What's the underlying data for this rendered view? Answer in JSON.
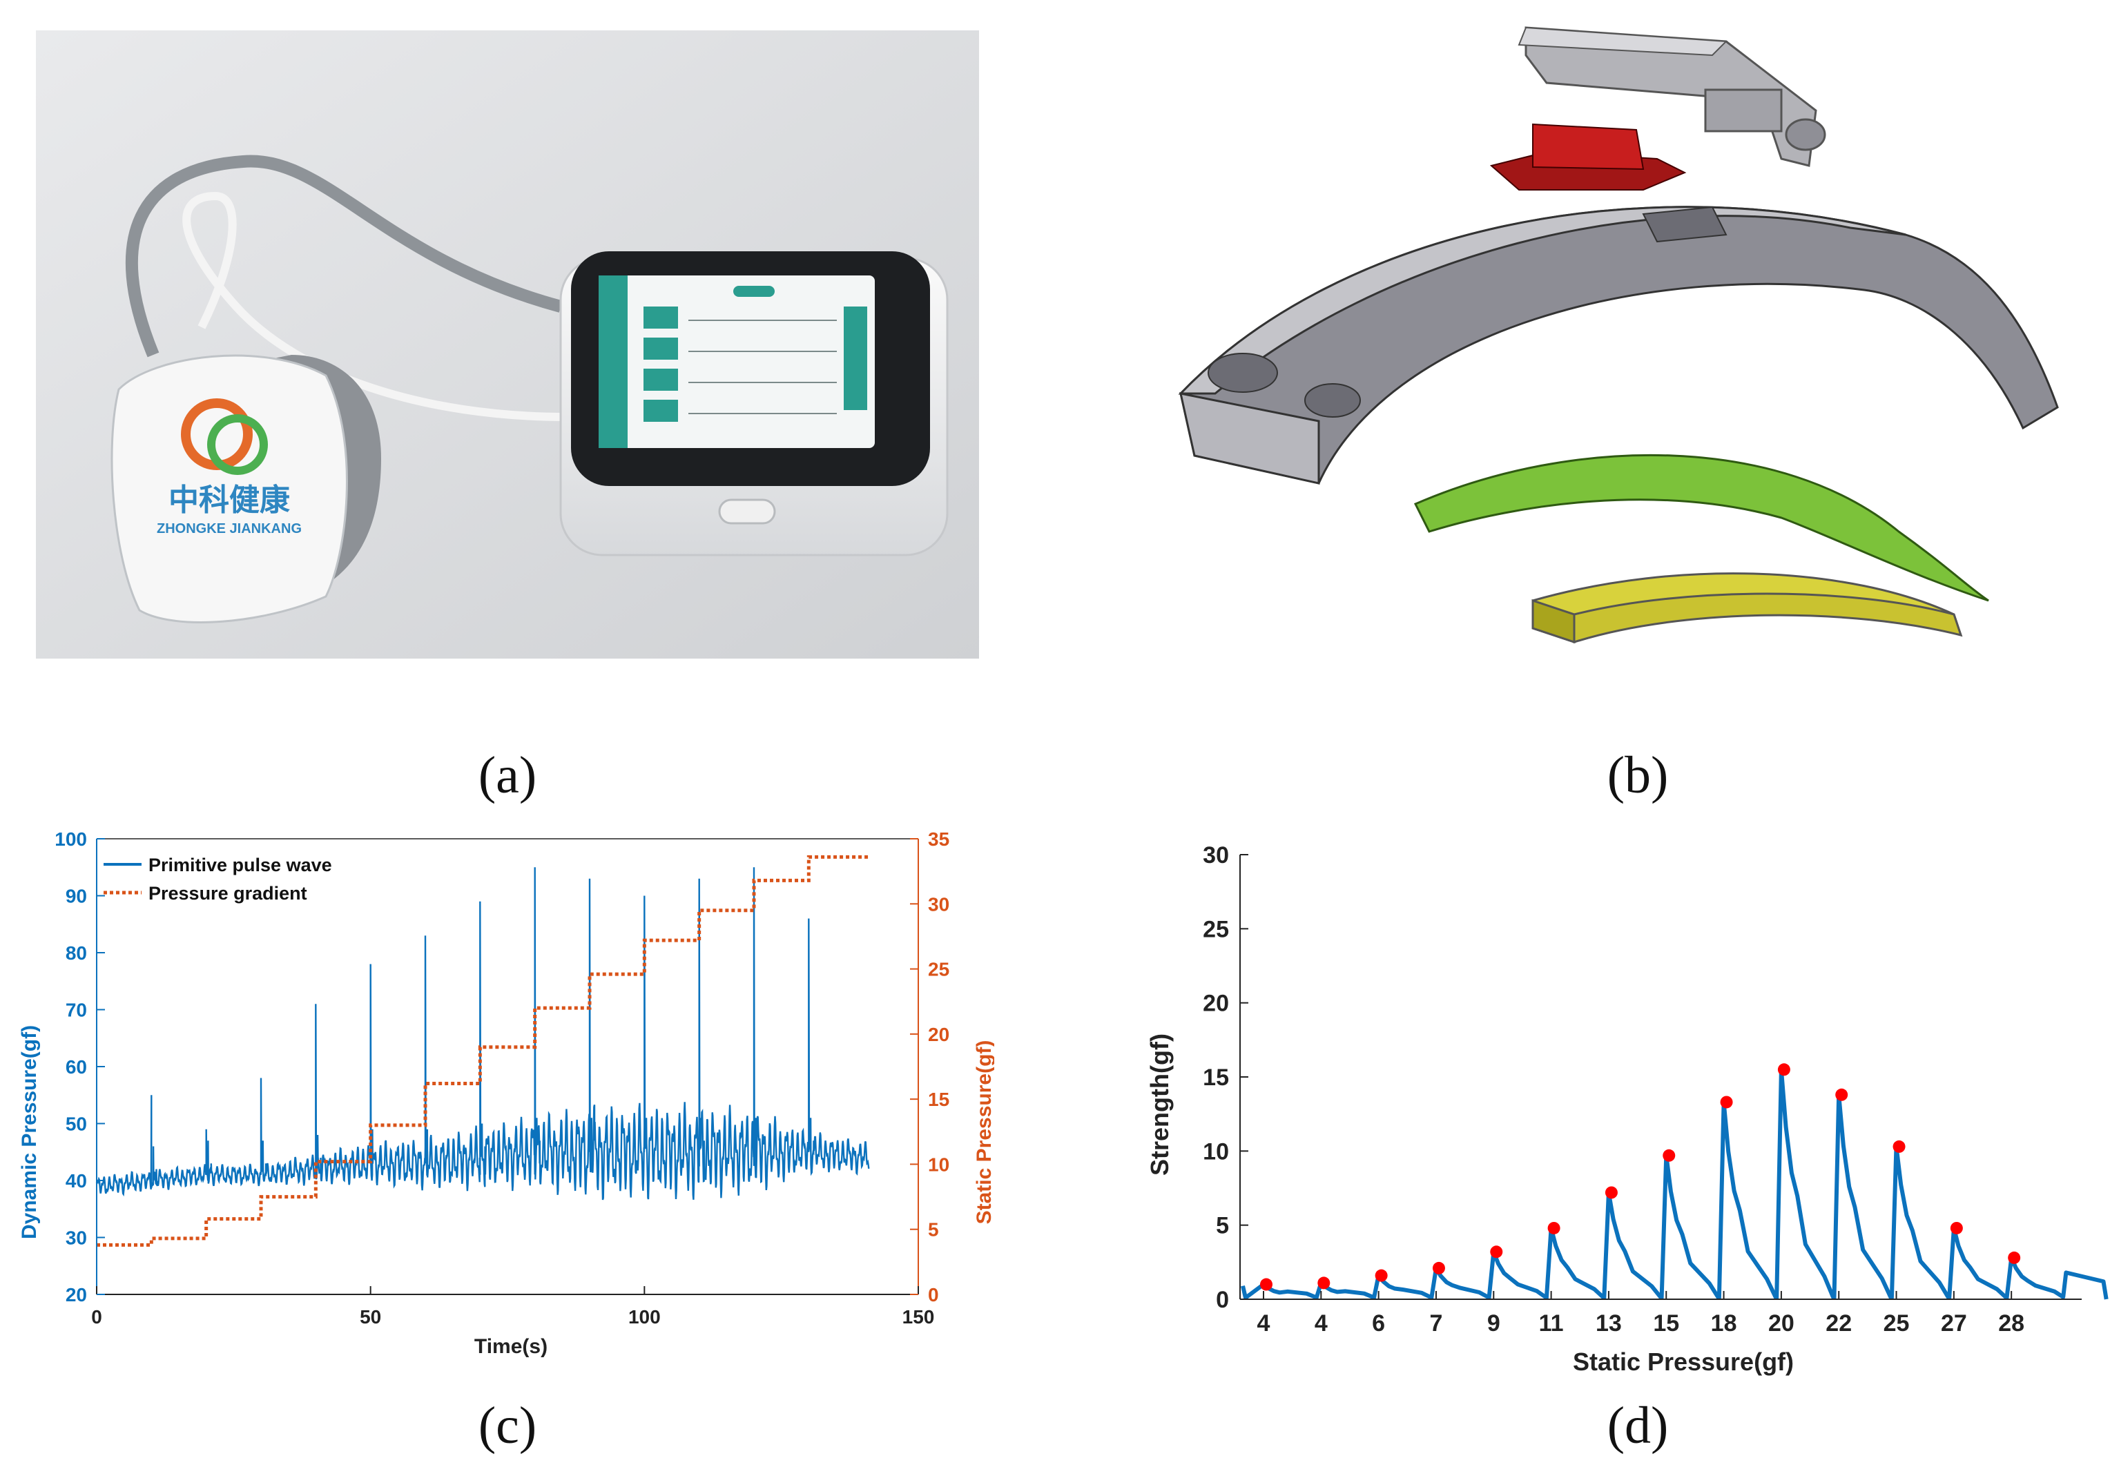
{
  "captions": {
    "a": "(a)",
    "b": "(b)",
    "c": "(c)",
    "d": "(d)"
  },
  "device_photo": {
    "logo_text_cn": "中科健康",
    "logo_text_en": "ZHONGKE JIANKANG",
    "screen_accent": "#2a9d8f"
  },
  "exploded_view": {
    "colors": {
      "housing": "#9a9aa2",
      "sensor": "#c81e1e",
      "film": "#7cc23a",
      "pad": "#c9c230",
      "clip": "#a9a9ae"
    }
  },
  "chart_data": [
    {
      "id": "c",
      "type": "line",
      "xlabel": "Time(s)",
      "ylabel": "Dynamic Pressure(gf)",
      "y2label": "Static Pressure(gf)",
      "xlim": [
        0,
        150
      ],
      "ylim": [
        20,
        100
      ],
      "y2lim": [
        0,
        35
      ],
      "xticks": [
        "0",
        "50",
        "100",
        "150"
      ],
      "yticks": [
        "20",
        "30",
        "40",
        "50",
        "60",
        "70",
        "80",
        "90",
        "100"
      ],
      "y2ticks": [
        "0",
        "5",
        "10",
        "15",
        "20",
        "25",
        "30",
        "35"
      ],
      "legend_position": "top-left",
      "colors": {
        "pulse": "#0b72bd",
        "gradient": "#d95319"
      },
      "series": [
        {
          "name": "Primitive pulse wave",
          "style": "solid",
          "baseline_x": [
            0,
            10,
            20,
            30,
            40,
            50,
            60,
            70,
            80,
            90,
            100,
            110,
            120,
            130,
            141
          ],
          "baseline_y": [
            39,
            40,
            41,
            41,
            42,
            43,
            43,
            44,
            45,
            45,
            45,
            45,
            45,
            45,
            44
          ],
          "envelope_x": [
            0,
            10,
            20,
            30,
            40,
            50,
            60,
            70,
            80,
            90,
            100,
            110,
            120,
            130,
            141
          ],
          "envelope_amp": [
            2,
            2,
            2,
            2,
            3,
            4,
            5,
            6,
            7,
            9,
            9,
            9,
            8,
            4,
            3
          ],
          "peaks_x": [
            10,
            20,
            30,
            40,
            50,
            60,
            70,
            80,
            90,
            100,
            110,
            120,
            130
          ],
          "peaks_y": [
            55,
            49,
            58,
            71,
            78,
            83,
            89,
            95,
            93,
            90,
            93,
            95,
            86
          ]
        },
        {
          "name": "Pressure gradient",
          "style": "dotted-step",
          "x": [
            0,
            10,
            20,
            30,
            40,
            50,
            60,
            70,
            80,
            90,
            100,
            110,
            120,
            130,
            141
          ],
          "y": [
            3.8,
            4.3,
            5.8,
            7.5,
            10.2,
            13.0,
            16.2,
            19.0,
            22.0,
            24.6,
            27.2,
            29.5,
            31.8,
            33.6,
            33.6
          ]
        }
      ]
    },
    {
      "id": "d",
      "type": "line",
      "xlabel": "Static Pressure(gf)",
      "ylabel": "Strength(gf)",
      "ylim": [
        0,
        30
      ],
      "yticks": [
        "0",
        "5",
        "10",
        "15",
        "20",
        "25",
        "30"
      ],
      "categories": [
        "4",
        "4",
        "6",
        "7",
        "9",
        "11",
        "13",
        "15",
        "18",
        "20",
        "22",
        "25",
        "27",
        "28"
      ],
      "colors": {
        "line": "#0b72bd",
        "marker": "#ff0000"
      },
      "series": [
        {
          "name": "",
          "peak_values": [
            1.0,
            1.1,
            1.6,
            2.1,
            3.2,
            4.8,
            7.2,
            9.7,
            13.3,
            15.5,
            13.8,
            10.3,
            4.8,
            2.8
          ]
        }
      ]
    }
  ]
}
